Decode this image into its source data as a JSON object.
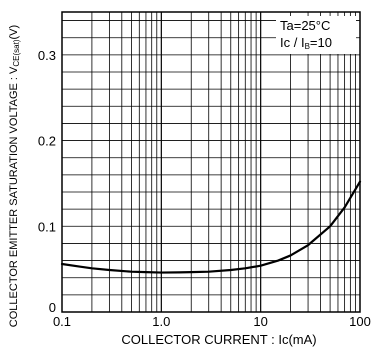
{
  "chart_data": {
    "type": "line",
    "title": "",
    "xlabel": "COLLECTOR  CURRENT : Ic(mA)",
    "ylabel_main": "COLLECTOR  EMITTER  SATURATION  VOLTAGE : V",
    "ylabel_sub": "CE(sat)",
    "ylabel_unit": "(V)",
    "x_scale": "log",
    "xlim": [
      0.1,
      100
    ],
    "ylim": [
      0,
      0.35
    ],
    "grid": true,
    "x_ticks": [
      {
        "value": 0.1,
        "label": "0.1"
      },
      {
        "value": 1,
        "label": "1.0"
      },
      {
        "value": 10,
        "label": "10"
      },
      {
        "value": 100,
        "label": "100"
      }
    ],
    "y_ticks": [
      {
        "value": 0,
        "label": "0"
      },
      {
        "value": 0.1,
        "label": "0.1"
      },
      {
        "value": 0.2,
        "label": "0.2"
      },
      {
        "value": 0.3,
        "label": "0.3"
      }
    ],
    "legend": {
      "placement": "top-right",
      "line1": "Ta=25°C",
      "line2_a": "Ic",
      "line2_b": " / I",
      "line2_sub": "B",
      "line2_c": "=10"
    },
    "series": [
      {
        "x": [
          0.1,
          0.15,
          0.2,
          0.3,
          0.5,
          0.7,
          1.0,
          1.5,
          2,
          3,
          5,
          7,
          10,
          15,
          20,
          30,
          50,
          70,
          100
        ],
        "y": [
          0.056,
          0.053,
          0.051,
          0.049,
          0.047,
          0.0465,
          0.046,
          0.0462,
          0.0465,
          0.047,
          0.049,
          0.051,
          0.054,
          0.06,
          0.066,
          0.078,
          0.1,
          0.122,
          0.152
        ]
      }
    ]
  }
}
